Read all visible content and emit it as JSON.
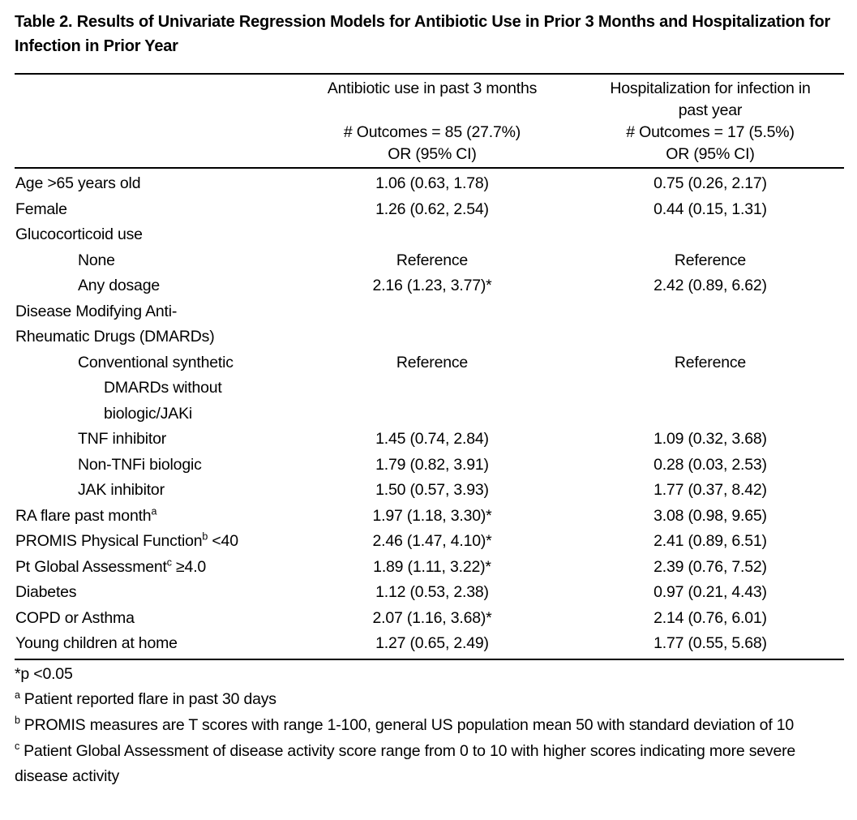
{
  "title": "Table 2. Results of Univariate Regression Models for Antibiotic Use in Prior 3 Months and Hospitalization for Infection in Prior Year",
  "table": {
    "header": {
      "antibiotic": {
        "lines": [
          "Antibiotic use in past 3 months",
          "",
          "# Outcomes = 85 (27.7%)",
          "OR (95% CI)"
        ]
      },
      "hospitalization": {
        "lines": [
          "Hospitalization for infection in",
          "past year",
          "# Outcomes = 17 (5.5%)",
          "OR (95% CI)"
        ]
      }
    },
    "rows": [
      {
        "label": [
          {
            "text": "Age >65 years old",
            "indent": 0
          }
        ],
        "antibiotic": "1.06 (0.63, 1.78)",
        "hospitalization": "0.75 (0.26, 2.17)"
      },
      {
        "label": [
          {
            "text": "Female",
            "indent": 0
          }
        ],
        "antibiotic": "1.26 (0.62, 2.54)",
        "hospitalization": "0.44 (0.15, 1.31)"
      },
      {
        "label": [
          {
            "text": "Glucocorticoid use",
            "indent": 0
          }
        ],
        "antibiotic": "",
        "hospitalization": ""
      },
      {
        "label": [
          {
            "text": "None",
            "indent": 1
          }
        ],
        "antibiotic": "Reference",
        "hospitalization": "Reference"
      },
      {
        "label": [
          {
            "text": "Any dosage",
            "indent": 1
          }
        ],
        "antibiotic": "2.16 (1.23, 3.77)*",
        "hospitalization": "2.42 (0.89, 6.62)"
      },
      {
        "label": [
          {
            "text": "Disease Modifying Anti-",
            "indent": 0
          },
          {
            "text": "Rheumatic Drugs (DMARDs)",
            "indent": 0
          }
        ],
        "antibiotic": "",
        "hospitalization": ""
      },
      {
        "label": [
          {
            "text": "Conventional synthetic",
            "indent": 1
          },
          {
            "text": "DMARDs without",
            "indent": 2
          },
          {
            "text": "biologic/JAKi",
            "indent": 2
          }
        ],
        "antibiotic": "Reference",
        "hospitalization": "Reference"
      },
      {
        "label": [
          {
            "text": "TNF inhibitor",
            "indent": 1
          }
        ],
        "antibiotic": "1.45 (0.74, 2.84)",
        "hospitalization": "1.09 (0.32, 3.68)"
      },
      {
        "label": [
          {
            "text": "Non-TNFi biologic",
            "indent": 1
          }
        ],
        "antibiotic": "1.79 (0.82, 3.91)",
        "hospitalization": "0.28 (0.03, 2.53)"
      },
      {
        "label": [
          {
            "text": "JAK inhibitor",
            "indent": 1
          }
        ],
        "antibiotic": "1.50 (0.57, 3.93)",
        "hospitalization": "1.77 (0.37, 8.42)"
      },
      {
        "label": [
          {
            "text": "RA flare past month",
            "sup": "a",
            "post": "",
            "indent": 0
          }
        ],
        "antibiotic": "1.97 (1.18, 3.30)*",
        "hospitalization": "3.08 (0.98, 9.65)"
      },
      {
        "label": [
          {
            "text": "PROMIS Physical Function",
            "sup": "b",
            "post": " <40",
            "indent": 0
          }
        ],
        "antibiotic": "2.46 (1.47, 4.10)*",
        "hospitalization": "2.41 (0.89, 6.51)"
      },
      {
        "label": [
          {
            "text": "Pt Global Assessment",
            "sup": "c",
            "post": " ≥4.0",
            "indent": 0
          }
        ],
        "antibiotic": "1.89 (1.11, 3.22)*",
        "hospitalization": "2.39 (0.76, 7.52)"
      },
      {
        "label": [
          {
            "text": "Diabetes",
            "indent": 0
          }
        ],
        "antibiotic": "1.12 (0.53, 2.38)",
        "hospitalization": "0.97 (0.21, 4.43)"
      },
      {
        "label": [
          {
            "text": "COPD or Asthma",
            "indent": 0
          }
        ],
        "antibiotic": "2.07 (1.16, 3.68)*",
        "hospitalization": "2.14 (0.76, 6.01)"
      },
      {
        "label": [
          {
            "text": "Young children at home",
            "indent": 0
          }
        ],
        "antibiotic": "1.27 (0.65, 2.49)",
        "hospitalization": "1.77 (0.55, 5.68)"
      }
    ]
  },
  "footnotes": [
    {
      "marker": "",
      "text": "*p <0.05"
    },
    {
      "marker": "a",
      "text": "Patient reported flare in past 30 days"
    },
    {
      "marker": "b",
      "text": "PROMIS measures are T scores with range 1-100, general US population mean 50 with standard deviation of 10"
    },
    {
      "marker": "c",
      "text": "Patient Global Assessment of disease activity score range from 0 to 10 with higher scores indicating more severe disease activity"
    }
  ],
  "colors": {
    "text": "#000000",
    "background": "#ffffff",
    "rule": "#000000"
  }
}
